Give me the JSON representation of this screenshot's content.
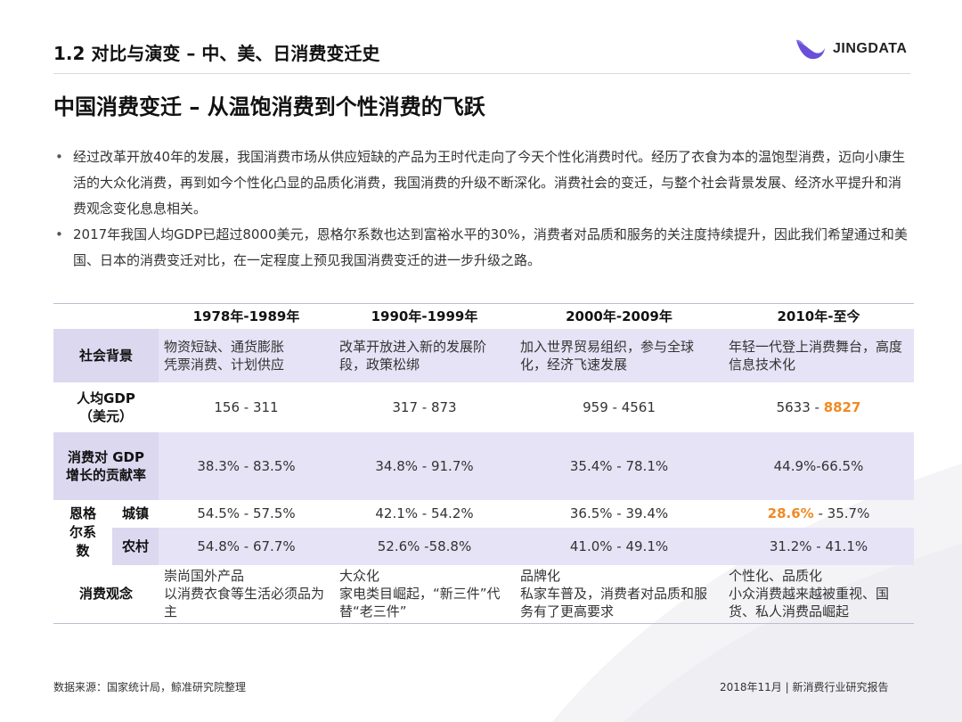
{
  "header": {
    "title": "1.2 对比与演变 – 中、美、日消费变迁史",
    "logo_text": "JINGDATA",
    "logo_color": "#6b4fd8"
  },
  "subtitle": "中国消费变迁 – 从温饱消费到个性消费的飞跃",
  "bullets": [
    "经过改革开放40年的发展，我国消费市场从供应短缺的产品为王时代走向了今天个性化消费时代。经历了衣食为本的温饱型消费，迈向小康生活的大众化消费，再到如今个性化凸显的品质化消费，我国消费的升级不断深化。消费社会的变迁，与整个社会背景发展、经济水平提升和消费观念变化息息相关。",
    "2017年我国人均GDP已超过8000美元，恩格尔系数也达到富裕水平的30%，消费者对品质和服务的关注度持续提升，因此我们希望通过和美国、日本的消费变迁对比，在一定程度上预见我国消费变迁的进一步升级之路。"
  ],
  "table": {
    "headers": [
      "1978年-1989年",
      "1990年-1999年",
      "2000年-2009年",
      "2010年-至今"
    ],
    "social_label": "社会背景",
    "social": [
      "物资短缺、通货膨胀\n凭票消费、计划供应",
      "改革开放进入新的发展阶段，政策松绑",
      "加入世界贸易组织，参与全球化，经济飞速发展",
      "年轻一代登上消费舞台，高度信息技术化"
    ],
    "gdp_label_1": "人均GDP",
    "gdp_label_2": "（美元）",
    "gdp": [
      "156 - 311",
      "317 - 873",
      "959 - 4561"
    ],
    "gdp_last_a": "5633 - ",
    "gdp_last_b": "8827",
    "contrib_label_1": "消费对 GDP",
    "contrib_label_2": "增长的贡献率",
    "contrib": [
      "38.3% - 83.5%",
      "34.8% - 91.7%",
      "35.4% - 78.1%",
      "44.9%-66.5%"
    ],
    "engel_label": "恩格尔系数",
    "urban_label": "城镇",
    "urban": [
      "54.5% - 57.5%",
      "42.1% - 54.2%",
      "36.5% - 39.4%"
    ],
    "urban_last_a": "28.6%",
    "urban_last_b": " - 35.7%",
    "rural_label": "农村",
    "rural": [
      "54.8% - 67.7%",
      "52.6% -58.8%",
      "41.0% - 49.1%",
      "31.2% - 41.1%"
    ],
    "concept_label": "消费观念",
    "concept": [
      "崇尚国外产品\n以消费衣食等生活必须品为主",
      "大众化\n家电类目崛起，“新三件”代替“老三件”",
      "品牌化\n私家车普及，消费者对品质和服务有了更高要求",
      "个性化、品质化\n小众消费越来越被重视、国货、私人消费品崛起"
    ]
  },
  "footer": {
    "source": "数据来源：国家统计局，鲸准研究院整理",
    "report": "2018年11月 | 新消费行业研究报告"
  },
  "colors": {
    "row_shade": "#e6e3f6",
    "highlight": "#f08a24"
  }
}
